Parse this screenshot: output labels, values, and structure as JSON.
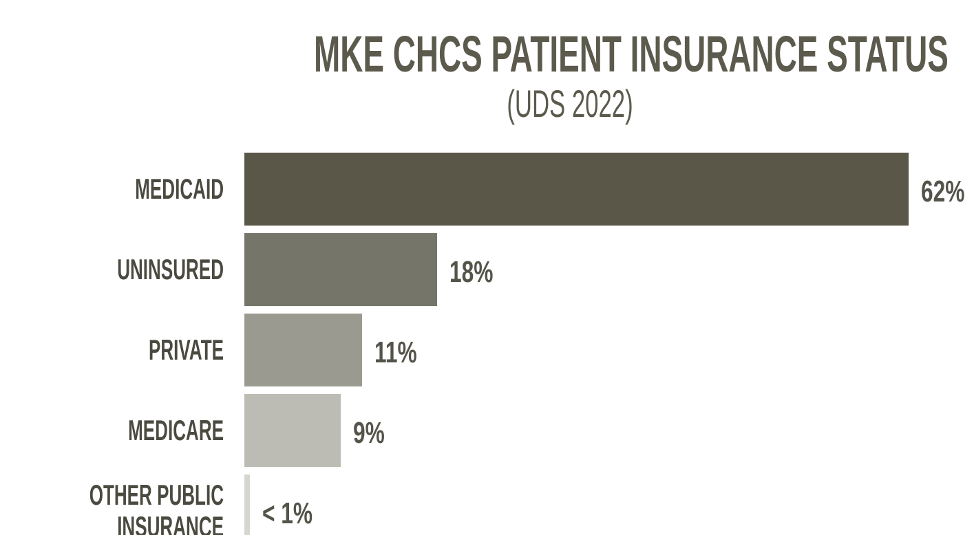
{
  "chart_data": {
    "type": "bar",
    "orientation": "horizontal",
    "title": "MKE CHCS PATIENT INSURANCE STATUS",
    "subtitle": "(UDS 2022)",
    "categories": [
      "MEDICAID",
      "UNINSURED",
      "PRIVATE",
      "MEDICARE",
      "OTHER PUBLIC INSURANCE"
    ],
    "values": [
      62,
      18,
      11,
      9,
      0.5
    ],
    "value_labels": [
      "62%",
      "18%",
      "11%",
      "9%",
      "< 1%"
    ],
    "colors": [
      "#5a5748",
      "#76756a",
      "#9b9a91",
      "#bcbcb5",
      "#d6d6d0"
    ]
  }
}
